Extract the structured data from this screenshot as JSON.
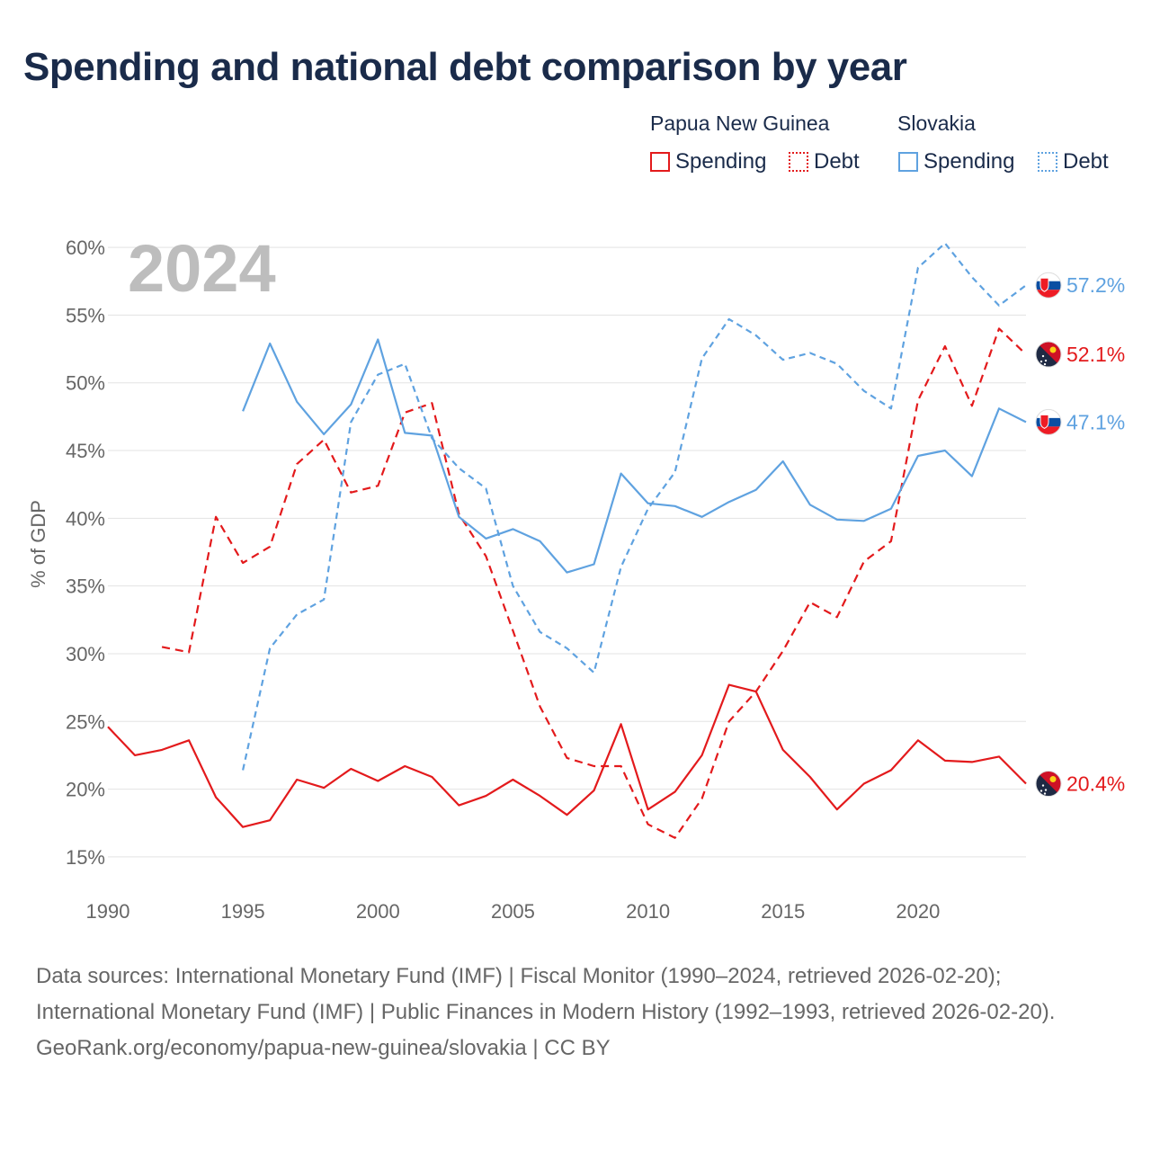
{
  "title": "Spending and national debt comparison by year",
  "legend": {
    "groups": [
      {
        "name": "Papua New Guinea",
        "color": "#e31a1c"
      },
      {
        "name": "Slovakia",
        "color": "#5fa2e0"
      }
    ],
    "spending_label": "Spending",
    "debt_label": "Debt"
  },
  "footer": {
    "sources": "Data sources: International Monetary Fund (IMF) | Fiscal Monitor (1990–2024, retrieved 2026-02-20); International Monetary Fund (IMF) | Public Finances in Modern History (1992–1993, retrieved 2026-02-20).",
    "credit": "GeoRank.org/economy/papua-new-guinea/slovakia | CC BY"
  },
  "chart_data": {
    "type": "line",
    "title": "Spending and national debt comparison by year",
    "year_label": "2024",
    "xlabel": "",
    "ylabel": "% of GDP",
    "xlim": [
      1990,
      2024
    ],
    "ylim": [
      13,
      61
    ],
    "x_ticks": [
      1990,
      1995,
      2000,
      2005,
      2010,
      2015,
      2020
    ],
    "y_ticks": [
      15,
      20,
      25,
      30,
      35,
      40,
      45,
      50,
      55,
      60
    ],
    "y_tick_labels": [
      "15%",
      "20%",
      "25%",
      "30%",
      "35%",
      "40%",
      "45%",
      "50%",
      "55%",
      "60%"
    ],
    "series": [
      {
        "name": "Papua New Guinea Spending",
        "country": "Papua New Guinea",
        "metric": "Spending",
        "color": "#e31a1c",
        "style": "solid",
        "end_label": "20.4%",
        "flag": "png",
        "x": [
          1990,
          1991,
          1992,
          1993,
          1994,
          1995,
          1996,
          1997,
          1998,
          1999,
          2000,
          2001,
          2002,
          2003,
          2004,
          2005,
          2006,
          2007,
          2008,
          2009,
          2010,
          2011,
          2012,
          2013,
          2014,
          2015,
          2016,
          2017,
          2018,
          2019,
          2020,
          2021,
          2022,
          2023,
          2024
        ],
        "values": [
          24.6,
          22.5,
          22.9,
          23.6,
          19.4,
          17.2,
          17.7,
          20.7,
          20.1,
          21.5,
          20.6,
          21.7,
          20.9,
          18.8,
          19.5,
          20.7,
          19.5,
          18.1,
          19.9,
          24.8,
          18.5,
          19.8,
          22.5,
          27.7,
          27.2,
          22.9,
          20.9,
          18.5,
          20.4,
          21.4,
          23.6,
          22.1,
          22.0,
          22.4,
          20.4
        ]
      },
      {
        "name": "Papua New Guinea Debt",
        "country": "Papua New Guinea",
        "metric": "Debt",
        "color": "#e31a1c",
        "style": "dashed",
        "end_label": "52.1%",
        "flag": "png",
        "x": [
          1992,
          1993,
          1994,
          1995,
          1996,
          1997,
          1998,
          1999,
          2000,
          2001,
          2002,
          2003,
          2004,
          2005,
          2006,
          2007,
          2008,
          2009,
          2010,
          2011,
          2012,
          2013,
          2014,
          2015,
          2016,
          2017,
          2018,
          2019,
          2020,
          2021,
          2022,
          2023,
          2024
        ],
        "values": [
          30.5,
          30.1,
          40.1,
          36.7,
          37.9,
          44.0,
          45.8,
          41.9,
          42.4,
          47.8,
          48.5,
          40.3,
          37.2,
          31.7,
          26.1,
          22.3,
          21.7,
          21.7,
          17.4,
          16.4,
          19.3,
          25.0,
          27.2,
          30.2,
          33.8,
          32.7,
          36.8,
          38.3,
          48.7,
          52.7,
          48.3,
          54.0,
          52.1
        ]
      },
      {
        "name": "Slovakia Spending",
        "country": "Slovakia",
        "metric": "Spending",
        "color": "#5fa2e0",
        "style": "solid",
        "end_label": "47.1%",
        "flag": "svk",
        "x": [
          1995,
          1996,
          1997,
          1998,
          1999,
          2000,
          2001,
          2002,
          2003,
          2004,
          2005,
          2006,
          2007,
          2008,
          2009,
          2010,
          2011,
          2012,
          2013,
          2014,
          2015,
          2016,
          2017,
          2018,
          2019,
          2020,
          2021,
          2022,
          2023,
          2024
        ],
        "values": [
          47.9,
          52.9,
          48.6,
          46.2,
          48.4,
          53.2,
          46.3,
          46.1,
          40.1,
          38.5,
          39.2,
          38.3,
          36.0,
          36.6,
          43.3,
          41.1,
          40.9,
          40.1,
          41.2,
          42.1,
          44.2,
          41.0,
          39.9,
          39.8,
          40.7,
          44.6,
          45.0,
          43.1,
          48.1,
          47.1
        ]
      },
      {
        "name": "Slovakia Debt",
        "country": "Slovakia",
        "metric": "Debt",
        "color": "#5fa2e0",
        "style": "dotted",
        "end_label": "57.2%",
        "flag": "svk",
        "x": [
          1995,
          1996,
          1997,
          1998,
          1999,
          2000,
          2001,
          2002,
          2003,
          2004,
          2005,
          2006,
          2007,
          2008,
          2009,
          2010,
          2011,
          2012,
          2013,
          2014,
          2015,
          2016,
          2017,
          2018,
          2019,
          2020,
          2021,
          2022,
          2023,
          2024
        ],
        "values": [
          21.4,
          30.4,
          32.9,
          34.0,
          47.1,
          50.6,
          51.4,
          45.9,
          43.7,
          42.2,
          35.0,
          31.6,
          30.4,
          28.6,
          36.4,
          40.7,
          43.4,
          51.8,
          54.7,
          53.5,
          51.7,
          52.2,
          51.4,
          49.4,
          48.1,
          58.5,
          60.3,
          57.8,
          55.7,
          57.2
        ]
      }
    ]
  }
}
